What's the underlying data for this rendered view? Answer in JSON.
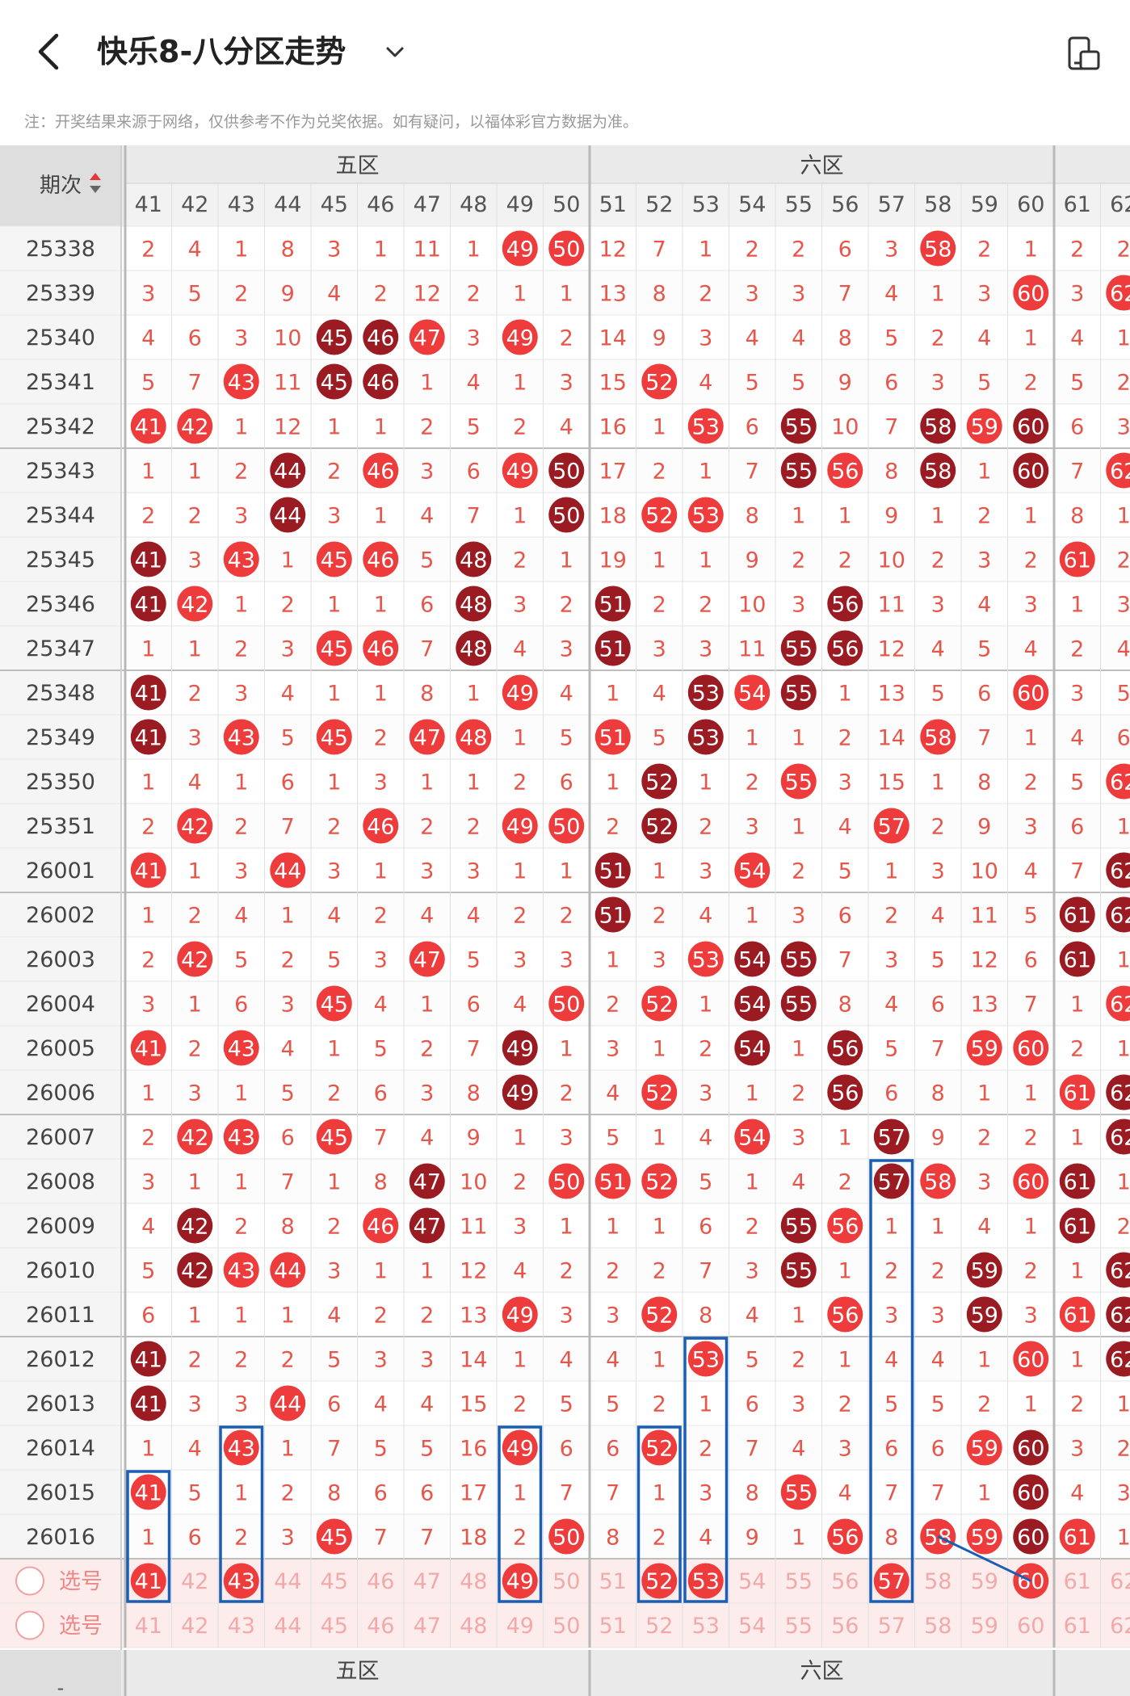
{
  "header": {
    "title": "快乐8-八分区走势",
    "back_icon": "back-arrow-icon",
    "dropdown_icon": "chevron-down-icon",
    "device_icon": "device-orientation-icon"
  },
  "notice": "注：开奖结果来源于网络，仅供参考不作为兑奖依据。如有疑问，以福体彩官方数据为准。",
  "table": {
    "period_header": "期次",
    "sort_icon": "sort-arrows-icon",
    "zones": [
      "五区",
      "六区"
    ],
    "columns": [
      "41",
      "42",
      "43",
      "44",
      "45",
      "46",
      "47",
      "48",
      "49",
      "50",
      "51",
      "52",
      "53",
      "54",
      "55",
      "56",
      "57",
      "58",
      "59",
      "60",
      "61",
      "62"
    ],
    "rows": [
      {
        "period": "25338",
        "cells": [
          2,
          4,
          1,
          8,
          3,
          1,
          11,
          1,
          "49",
          "50",
          12,
          7,
          1,
          2,
          2,
          6,
          3,
          "58",
          2,
          1,
          2,
          2
        ]
      },
      {
        "period": "25339",
        "cells": [
          3,
          5,
          2,
          9,
          4,
          2,
          12,
          2,
          1,
          1,
          13,
          8,
          2,
          3,
          3,
          7,
          4,
          1,
          3,
          "60",
          3,
          "62"
        ]
      },
      {
        "period": "25340",
        "cells": [
          4,
          6,
          3,
          10,
          "45",
          "46",
          "47",
          3,
          "49",
          2,
          14,
          9,
          3,
          4,
          4,
          8,
          5,
          2,
          4,
          1,
          4,
          1
        ]
      },
      {
        "period": "25341",
        "cells": [
          5,
          7,
          "43",
          11,
          "45",
          "46",
          1,
          4,
          1,
          3,
          15,
          "52",
          4,
          5,
          5,
          9,
          6,
          3,
          5,
          2,
          5,
          2
        ]
      },
      {
        "period": "25342",
        "cells": [
          "41",
          "42",
          1,
          12,
          1,
          1,
          2,
          5,
          2,
          4,
          16,
          1,
          "53",
          6,
          "55",
          10,
          7,
          "58",
          "59",
          "60",
          6,
          3
        ]
      },
      {
        "period": "25343",
        "cells": [
          1,
          1,
          2,
          "44",
          2,
          "46",
          3,
          6,
          "49",
          "50",
          17,
          2,
          1,
          7,
          "55",
          "56",
          8,
          "58",
          1,
          "60",
          7,
          "62"
        ]
      },
      {
        "period": "25344",
        "cells": [
          2,
          2,
          3,
          "44",
          3,
          1,
          4,
          7,
          1,
          "50",
          18,
          "52",
          "53",
          8,
          1,
          1,
          9,
          1,
          2,
          1,
          8,
          1
        ]
      },
      {
        "period": "25345",
        "cells": [
          "41",
          3,
          "43",
          1,
          "45",
          "46",
          5,
          "48",
          2,
          1,
          19,
          1,
          1,
          9,
          2,
          2,
          10,
          2,
          3,
          2,
          "61",
          2
        ]
      },
      {
        "period": "25346",
        "cells": [
          "41",
          "42",
          1,
          2,
          1,
          1,
          6,
          "48",
          3,
          2,
          "51",
          2,
          2,
          10,
          3,
          "56",
          11,
          3,
          4,
          3,
          1,
          3
        ]
      },
      {
        "period": "25347",
        "cells": [
          1,
          1,
          2,
          3,
          "45",
          "46",
          7,
          "48",
          4,
          3,
          "51",
          3,
          3,
          11,
          "55",
          "56",
          12,
          4,
          5,
          4,
          2,
          4
        ]
      },
      {
        "period": "25348",
        "cells": [
          "41",
          2,
          3,
          4,
          1,
          1,
          8,
          1,
          "49",
          4,
          1,
          4,
          "53",
          "54",
          "55",
          1,
          13,
          5,
          6,
          "60",
          3,
          5
        ]
      },
      {
        "period": "25349",
        "cells": [
          "41",
          3,
          "43",
          5,
          "45",
          2,
          "47",
          "48",
          1,
          5,
          "51",
          5,
          "53",
          1,
          1,
          2,
          14,
          "58",
          7,
          1,
          4,
          6
        ]
      },
      {
        "period": "25350",
        "cells": [
          1,
          4,
          1,
          6,
          1,
          3,
          1,
          1,
          2,
          6,
          1,
          "52",
          1,
          2,
          "55",
          3,
          15,
          1,
          8,
          2,
          5,
          "62"
        ]
      },
      {
        "period": "25351",
        "cells": [
          2,
          "42",
          2,
          7,
          2,
          "46",
          2,
          2,
          "49",
          "50",
          2,
          "52",
          2,
          3,
          1,
          4,
          "57",
          2,
          9,
          3,
          6,
          1
        ]
      },
      {
        "period": "26001",
        "cells": [
          "41",
          1,
          3,
          "44",
          3,
          1,
          3,
          3,
          1,
          1,
          "51",
          1,
          3,
          "54",
          2,
          5,
          1,
          3,
          10,
          4,
          7,
          "62"
        ]
      },
      {
        "period": "26002",
        "cells": [
          1,
          2,
          4,
          1,
          4,
          2,
          4,
          4,
          2,
          2,
          "51",
          2,
          4,
          1,
          3,
          6,
          2,
          4,
          11,
          5,
          "61",
          "62"
        ]
      },
      {
        "period": "26003",
        "cells": [
          2,
          "42",
          5,
          2,
          5,
          3,
          "47",
          5,
          3,
          3,
          1,
          3,
          "53",
          "54",
          "55",
          7,
          3,
          5,
          12,
          6,
          "61",
          1
        ]
      },
      {
        "period": "26004",
        "cells": [
          3,
          1,
          6,
          3,
          "45",
          4,
          1,
          6,
          4,
          "50",
          2,
          "52",
          1,
          "54",
          "55",
          8,
          4,
          6,
          13,
          7,
          1,
          "62"
        ]
      },
      {
        "period": "26005",
        "cells": [
          "41",
          2,
          "43",
          4,
          1,
          5,
          2,
          7,
          "49",
          1,
          3,
          1,
          2,
          "54",
          1,
          "56",
          5,
          7,
          "59",
          "60",
          2,
          1
        ]
      },
      {
        "period": "26006",
        "cells": [
          1,
          3,
          1,
          5,
          2,
          6,
          3,
          8,
          "49",
          2,
          4,
          "52",
          3,
          1,
          2,
          "56",
          6,
          8,
          1,
          1,
          "61",
          "62"
        ]
      },
      {
        "period": "26007",
        "cells": [
          2,
          "42",
          "43",
          6,
          "45",
          7,
          4,
          9,
          1,
          3,
          5,
          1,
          4,
          "54",
          3,
          1,
          "57",
          9,
          2,
          2,
          1,
          "62"
        ]
      },
      {
        "period": "26008",
        "cells": [
          3,
          1,
          1,
          7,
          1,
          8,
          "47",
          10,
          2,
          "50",
          "51",
          "52",
          5,
          1,
          4,
          2,
          "57",
          "58",
          3,
          "60",
          "61",
          1
        ]
      },
      {
        "period": "26009",
        "cells": [
          4,
          "42",
          2,
          8,
          2,
          "46",
          "47",
          11,
          3,
          1,
          1,
          1,
          6,
          2,
          "55",
          "56",
          1,
          1,
          4,
          1,
          "61",
          2
        ]
      },
      {
        "period": "26010",
        "cells": [
          5,
          "42",
          "43",
          "44",
          3,
          1,
          1,
          12,
          4,
          2,
          2,
          2,
          7,
          3,
          "55",
          1,
          2,
          2,
          "59",
          2,
          1,
          "62"
        ]
      },
      {
        "period": "26011",
        "cells": [
          6,
          1,
          1,
          1,
          4,
          2,
          2,
          13,
          "49",
          3,
          3,
          "52",
          8,
          4,
          1,
          "56",
          3,
          3,
          "59",
          3,
          "61",
          "62"
        ]
      },
      {
        "period": "26012",
        "cells": [
          "41",
          2,
          2,
          2,
          5,
          3,
          3,
          14,
          1,
          4,
          4,
          1,
          "53",
          5,
          2,
          1,
          4,
          4,
          1,
          "60",
          1,
          "62"
        ]
      },
      {
        "period": "26013",
        "cells": [
          "41",
          3,
          3,
          "44",
          6,
          4,
          4,
          15,
          2,
          5,
          5,
          2,
          1,
          6,
          3,
          2,
          5,
          5,
          2,
          1,
          2,
          1
        ]
      },
      {
        "period": "26014",
        "cells": [
          1,
          4,
          "43",
          1,
          7,
          5,
          5,
          16,
          "49",
          6,
          6,
          "52",
          2,
          7,
          4,
          3,
          6,
          6,
          "59",
          "60",
          3,
          2
        ]
      },
      {
        "period": "26015",
        "cells": [
          "41",
          5,
          1,
          2,
          8,
          6,
          6,
          17,
          1,
          7,
          7,
          1,
          3,
          8,
          "55",
          4,
          7,
          7,
          1,
          "60",
          4,
          3
        ]
      },
      {
        "period": "26016",
        "cells": [
          1,
          6,
          2,
          3,
          "45",
          7,
          7,
          18,
          2,
          "50",
          8,
          2,
          4,
          9,
          1,
          "56",
          8,
          "58",
          "59",
          "60",
          "61",
          1
        ]
      }
    ],
    "select_label": "选号",
    "selection_row_1_picked": [
      "41",
      "43",
      "49",
      "52",
      "53",
      "57",
      "60"
    ],
    "footer_zones": [
      "五区",
      "六区"
    ],
    "footer_period_label": "-"
  },
  "colors": {
    "ball_red": "#ee3b3b",
    "ball_dark": "#9b1b22",
    "miss_text": "#e6564a",
    "selection_box": "#1a5fb4",
    "zone_bg": "#eaeaea"
  }
}
